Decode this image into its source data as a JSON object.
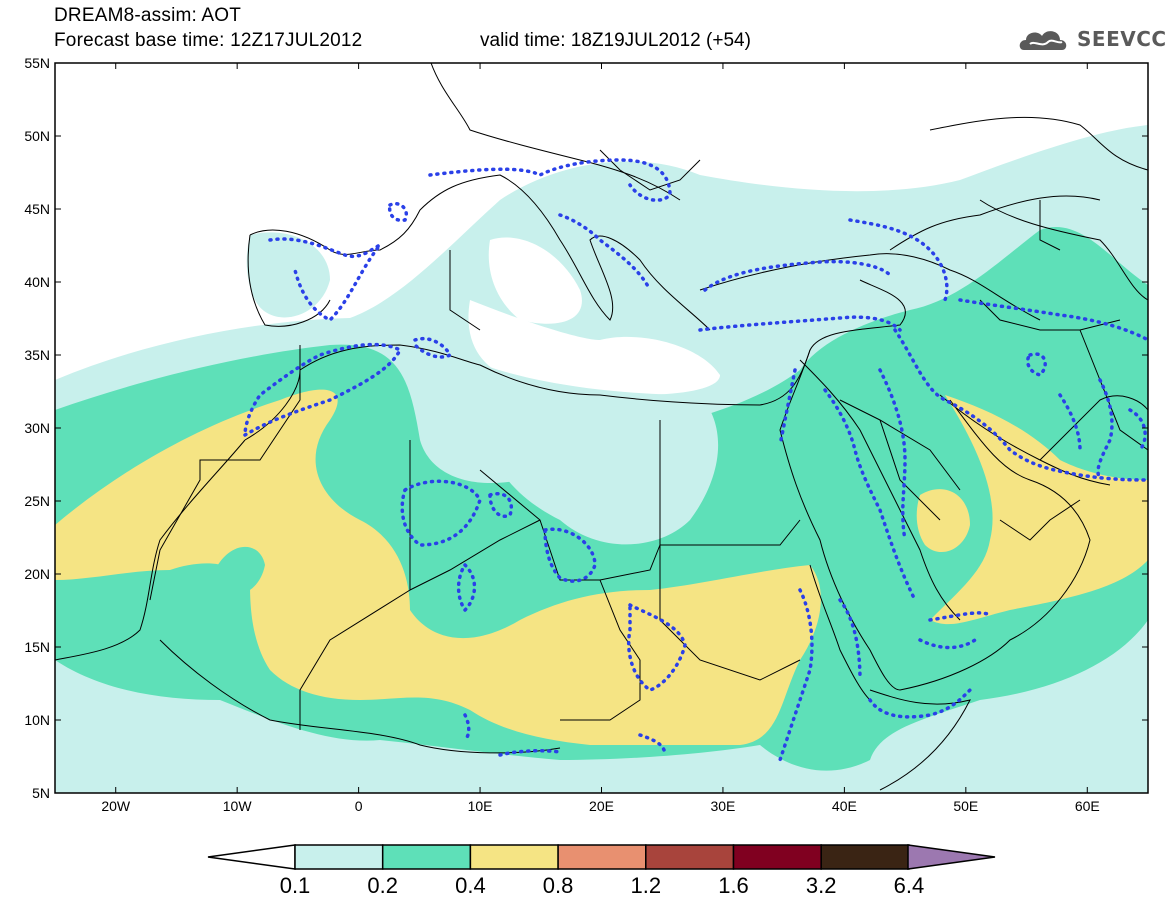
{
  "header": {
    "title": "DREAM8-assim: AOT",
    "base_time": "Forecast base time: 12Z17JUL2012",
    "valid_time": "valid time: 18Z19JUL2012 (+54)"
  },
  "logo": {
    "text": "SEEVCCC",
    "icon": "cloud-logo-icon"
  },
  "axes": {
    "lat_labels": [
      "55N",
      "50N",
      "45N",
      "40N",
      "35N",
      "30N",
      "25N",
      "20N",
      "15N",
      "10N",
      "5N"
    ],
    "lat_values": [
      55,
      50,
      45,
      40,
      35,
      30,
      25,
      20,
      15,
      10,
      5
    ],
    "lon_labels": [
      "20W",
      "10W",
      "0",
      "10E",
      "20E",
      "30E",
      "40E",
      "50E",
      "60E"
    ],
    "lon_values": [
      -20,
      -10,
      0,
      10,
      20,
      30,
      40,
      50,
      60
    ],
    "lon_range": [
      -25,
      65
    ],
    "lat_range": [
      5,
      55
    ]
  },
  "colorbar": {
    "labels": [
      "0.1",
      "0.2",
      "0.4",
      "0.8",
      "1.2",
      "1.6",
      "3.2",
      "6.4"
    ],
    "colors": [
      "#c8f0ec",
      "#5ee0b8",
      "#f5e484",
      "#e89070",
      "#a8443c",
      "#800020",
      "#3a2414",
      "#9c78b0"
    ],
    "low_color": "#ffffff"
  },
  "colors": {
    "c1": "#c8f0ec",
    "c2": "#5ee0b8",
    "c3": "#f5e484",
    "dots": "#2a40e8"
  }
}
